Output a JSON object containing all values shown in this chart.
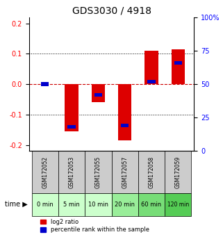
{
  "title": "GDS3030 / 4918",
  "samples": [
    "GSM172052",
    "GSM172053",
    "GSM172055",
    "GSM172057",
    "GSM172058",
    "GSM172059"
  ],
  "time_labels": [
    "0 min",
    "5 min",
    "10 min",
    "20 min",
    "60 min",
    "120 min"
  ],
  "log2_values": [
    0.0,
    -0.155,
    -0.06,
    -0.185,
    0.11,
    0.115
  ],
  "percentile_values": [
    0.5,
    0.18,
    0.42,
    0.19,
    0.52,
    0.66
  ],
  "ylim": [
    -0.22,
    0.22
  ],
  "right_ylim": [
    0,
    100
  ],
  "yticks_left": [
    -0.2,
    -0.1,
    0.0,
    0.1,
    0.2
  ],
  "yticks_right": [
    0,
    25,
    50,
    75,
    100
  ],
  "bar_color_red": "#dd0000",
  "bar_color_blue": "#0000cc",
  "zero_line_color": "#cc0000",
  "grid_color": "#000000",
  "sample_bg_color": "#cccccc",
  "time_bg_colors": [
    "#ccffcc",
    "#ccffcc",
    "#ccffcc",
    "#99ee99",
    "#77dd77",
    "#55cc55"
  ],
  "bar_width": 0.5,
  "percentile_bar_width": 0.3,
  "percentile_bar_height": 0.01
}
